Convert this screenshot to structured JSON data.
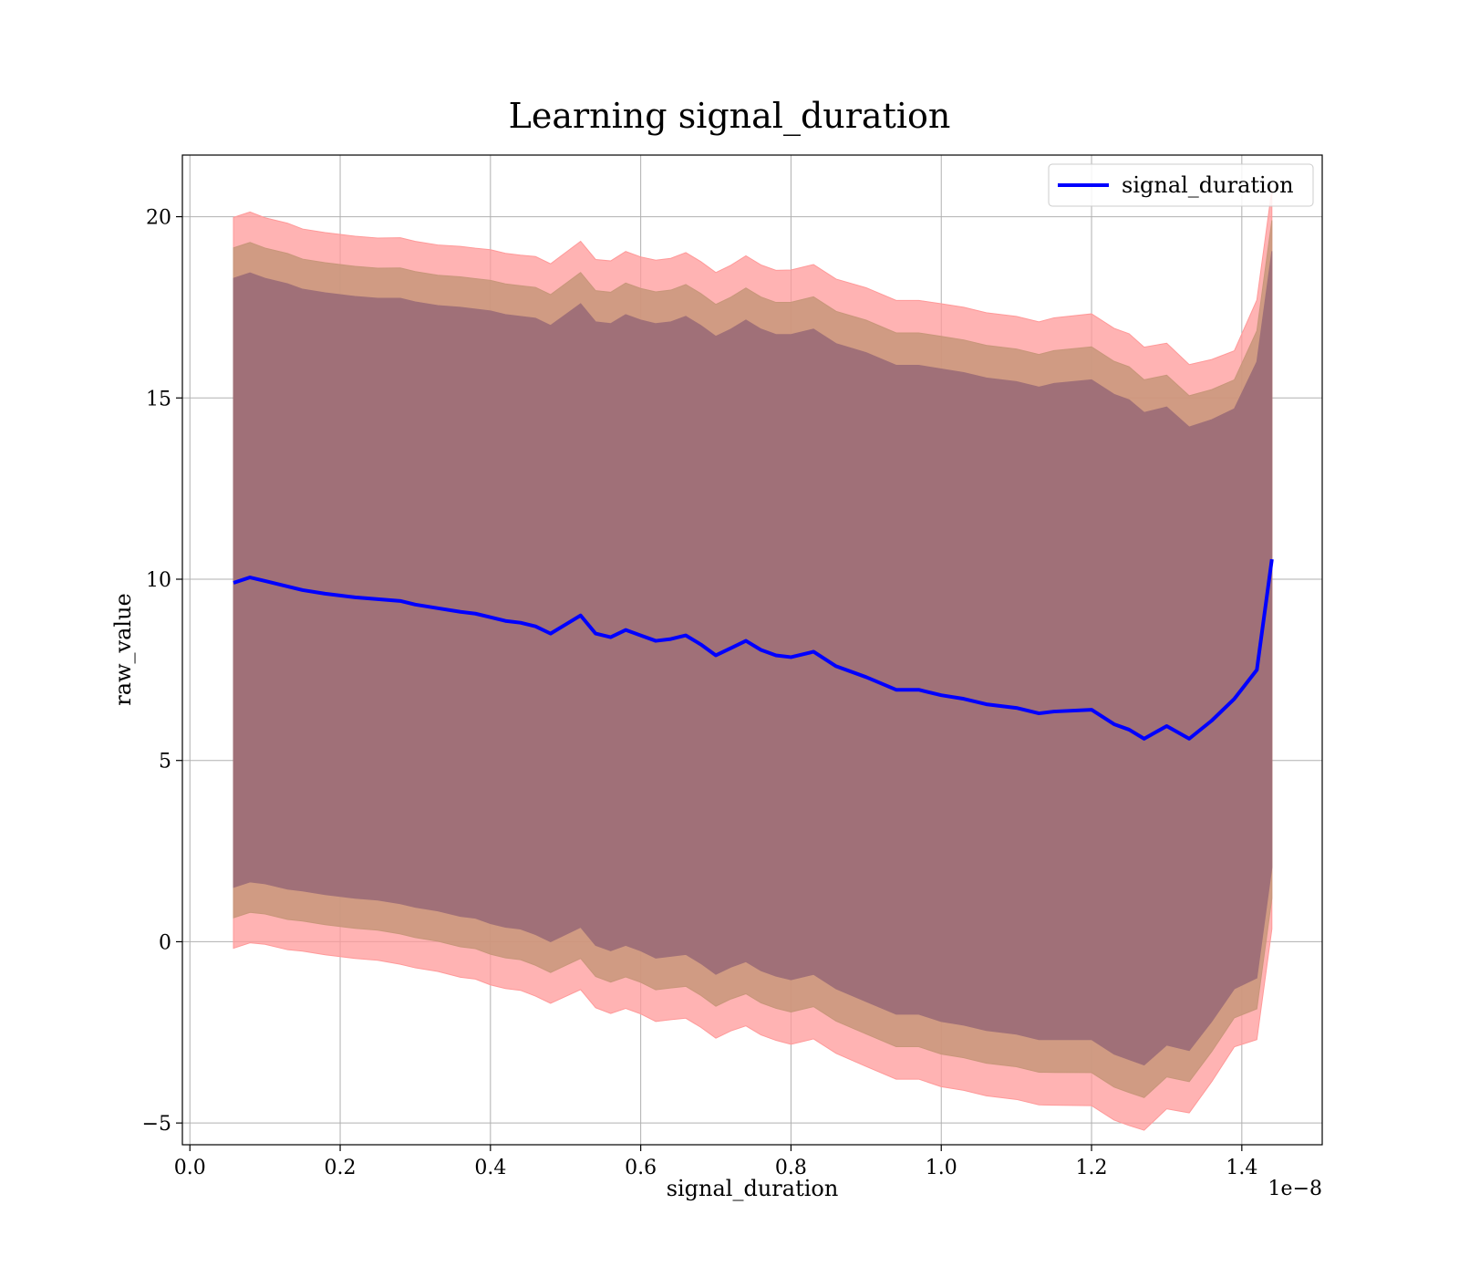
{
  "chart_data": {
    "type": "line",
    "title": "Learning signal_duration",
    "xlabel": "signal_duration",
    "ylabel": "raw_value",
    "x_offset_text": "1e−8",
    "xlim": [
      -0.01,
      1.507
    ],
    "ylim": [
      -5.6,
      21.7
    ],
    "x_ticks": [
      0.0,
      0.2,
      0.4,
      0.6,
      0.8,
      1.0,
      1.2,
      1.4
    ],
    "x_tick_labels": [
      "0.0",
      "0.2",
      "0.4",
      "0.6",
      "0.8",
      "1.0",
      "1.2",
      "1.4"
    ],
    "y_ticks": [
      -5,
      0,
      5,
      10,
      15,
      20
    ],
    "y_tick_labels": [
      "−5",
      "0",
      "5",
      "10",
      "15",
      "20"
    ],
    "grid": true,
    "legend": {
      "position": "top-right",
      "entries": [
        "signal_duration"
      ]
    },
    "colors": {
      "line": "#0000ff",
      "band_outer": "#ff9999",
      "band_middle": "#c8967a",
      "band_inner": "#a07078"
    },
    "x": [
      0.058,
      0.08,
      0.1,
      0.13,
      0.15,
      0.18,
      0.2,
      0.22,
      0.25,
      0.28,
      0.3,
      0.33,
      0.36,
      0.38,
      0.4,
      0.42,
      0.44,
      0.46,
      0.48,
      0.5,
      0.52,
      0.54,
      0.56,
      0.58,
      0.6,
      0.62,
      0.64,
      0.66,
      0.68,
      0.7,
      0.72,
      0.74,
      0.76,
      0.78,
      0.8,
      0.83,
      0.86,
      0.9,
      0.94,
      0.97,
      1.0,
      1.03,
      1.06,
      1.1,
      1.13,
      1.15,
      1.2,
      1.23,
      1.25,
      1.27,
      1.3,
      1.33,
      1.36,
      1.39,
      1.42,
      1.44
    ],
    "series": [
      {
        "name": "signal_duration",
        "values": [
          9.9,
          10.05,
          9.95,
          9.8,
          9.7,
          9.6,
          9.55,
          9.5,
          9.45,
          9.4,
          9.3,
          9.2,
          9.1,
          9.05,
          8.95,
          8.85,
          8.8,
          8.7,
          8.5,
          8.75,
          9.0,
          8.5,
          8.4,
          8.6,
          8.45,
          8.3,
          8.35,
          8.45,
          8.2,
          7.9,
          8.1,
          8.3,
          8.05,
          7.9,
          7.85,
          8.0,
          7.6,
          7.3,
          6.95,
          6.95,
          6.8,
          6.7,
          6.55,
          6.45,
          6.3,
          6.35,
          6.4,
          6.0,
          5.85,
          5.6,
          5.95,
          5.6,
          6.1,
          6.7,
          7.5,
          10.55
        ],
        "std": [
          8.4,
          8.4,
          8.35,
          8.35,
          8.3,
          8.3,
          8.3,
          8.3,
          8.3,
          8.35,
          8.35,
          8.35,
          8.4,
          8.4,
          8.45,
          8.45,
          8.45,
          8.5,
          8.5,
          8.55,
          8.6,
          8.6,
          8.65,
          8.7,
          8.7,
          8.75,
          8.75,
          8.8,
          8.8,
          8.8,
          8.8,
          8.85,
          8.85,
          8.85,
          8.9,
          8.9,
          8.9,
          8.95,
          8.95,
          8.95,
          9.0,
          9.0,
          9.0,
          9.0,
          9.0,
          9.05,
          9.1,
          9.1,
          9.1,
          9.0,
          8.8,
          8.6,
          8.3,
          8.0,
          8.5,
          8.5
        ]
      }
    ],
    "bands": [
      {
        "name": "outer",
        "sigma": 1.2
      },
      {
        "name": "middle",
        "sigma": 1.1
      },
      {
        "name": "inner",
        "sigma": 1.0
      }
    ]
  }
}
